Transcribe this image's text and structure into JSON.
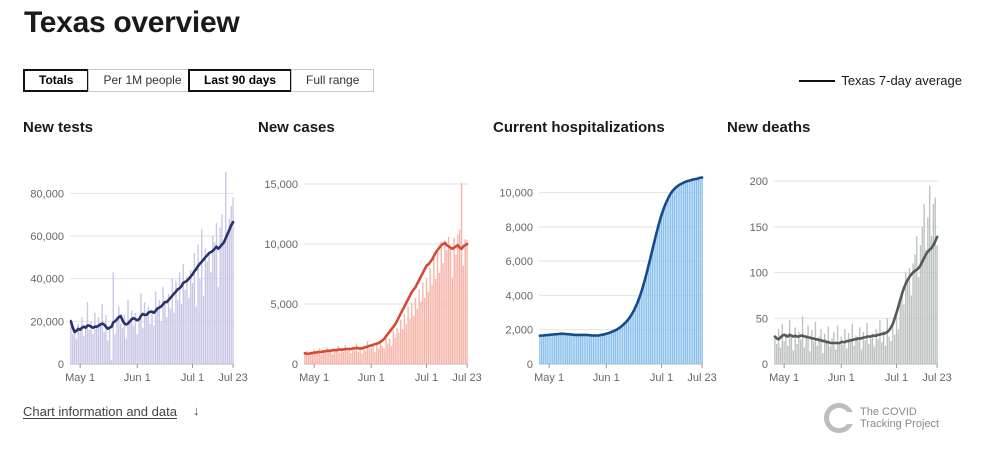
{
  "page": {
    "title": "Texas overview"
  },
  "controls": {
    "totals": "Totals",
    "per_1m": "Per 1M people",
    "last_90": "Last 90 days",
    "full_range": "Full range"
  },
  "legend": {
    "label": "Texas 7-day average"
  },
  "footer": {
    "link_label": "Chart information and data",
    "arrow": "↓"
  },
  "logo": {
    "line1": "The COVID",
    "line2": "Tracking Project"
  },
  "chart_data": [
    {
      "type": "bar",
      "title": "New tests",
      "bar_color": "#c9c7e6",
      "line_color": "#28336a",
      "ylim": [
        0,
        90000
      ],
      "yticks": [
        0,
        20000,
        40000,
        60000,
        80000
      ],
      "ytick_labels": [
        "0",
        "20,000",
        "40,000",
        "60,000",
        "80,000"
      ],
      "xticks": [
        {
          "index": 5,
          "label": "May 1"
        },
        {
          "index": 36,
          "label": "Jun 1"
        },
        {
          "index": 66,
          "label": "Jul 1"
        },
        {
          "index": 88,
          "label": "Jul 23"
        }
      ],
      "values": [
        21000,
        14000,
        17000,
        12000,
        19000,
        15000,
        22000,
        13000,
        18000,
        29000,
        16000,
        20000,
        14000,
        24000,
        17000,
        22000,
        18000,
        28000,
        15000,
        23000,
        11000,
        17000,
        2000,
        43000,
        14000,
        22000,
        27000,
        19000,
        17000,
        23000,
        12000,
        30000,
        20000,
        25000,
        18000,
        24000,
        14000,
        21000,
        33000,
        17000,
        29000,
        22000,
        27000,
        19000,
        24000,
        18000,
        34000,
        25000,
        30000,
        20000,
        36000,
        28000,
        22000,
        33000,
        26000,
        40000,
        24000,
        39000,
        30000,
        43000,
        28000,
        47000,
        35000,
        41000,
        31000,
        44000,
        38000,
        52000,
        27000,
        56000,
        40000,
        63000,
        32000,
        54000,
        48000,
        52000,
        43000,
        60000,
        57000,
        66000,
        36000,
        64000,
        70000,
        58000,
        90000,
        60000,
        68000,
        74000,
        78000
      ],
      "avg": [
        20000,
        17000,
        15000,
        15500,
        16500,
        16000,
        17000,
        17500,
        17000,
        18000,
        18000,
        17500,
        17000,
        17500,
        17500,
        18000,
        18500,
        19000,
        18500,
        17500,
        16500,
        17000,
        17500,
        19500,
        20000,
        21000,
        22000,
        22500,
        20500,
        19000,
        18500,
        19000,
        20000,
        21000,
        21500,
        21000,
        20500,
        21000,
        22500,
        23500,
        23000,
        23000,
        24000,
        24500,
        24500,
        24000,
        25000,
        26000,
        26500,
        27000,
        28000,
        29000,
        29000,
        30000,
        31000,
        32000,
        33000,
        34000,
        35000,
        35500,
        36500,
        38000,
        38500,
        39000,
        40000,
        41000,
        42000,
        43500,
        44500,
        46000,
        47000,
        48000,
        49000,
        50000,
        51000,
        52000,
        52500,
        53000,
        54000,
        55000,
        54000,
        55000,
        56000,
        57000,
        59000,
        61000,
        63000,
        65000,
        66500
      ]
    },
    {
      "type": "bar",
      "title": "New cases",
      "bar_color": "#f7b4a8",
      "line_color": "#d34b33",
      "ylim": [
        0,
        16000
      ],
      "yticks": [
        0,
        5000,
        10000,
        15000
      ],
      "ytick_labels": [
        "0",
        "5,000",
        "10,000",
        "15,000"
      ],
      "xticks": [
        {
          "index": 5,
          "label": "May 1"
        },
        {
          "index": 36,
          "label": "Jun 1"
        },
        {
          "index": 66,
          "label": "Jul 1"
        },
        {
          "index": 88,
          "label": "Jul 23"
        }
      ],
      "values": [
        900,
        1100,
        700,
        1000,
        800,
        1200,
        900,
        1000,
        1300,
        750,
        1100,
        900,
        1400,
        1000,
        1200,
        800,
        1300,
        1100,
        1500,
        950,
        1200,
        1000,
        1600,
        1100,
        1400,
        900,
        1300,
        1100,
        1700,
        1000,
        1200,
        850,
        1500,
        1100,
        1900,
        1200,
        1300,
        1700,
        1000,
        1800,
        1300,
        2000,
        1500,
        1300,
        2500,
        1700,
        2100,
        1500,
        2800,
        2200,
        3000,
        2600,
        3700,
        2900,
        4200,
        3300,
        4800,
        3800,
        5100,
        4000,
        5500,
        4600,
        6200,
        5200,
        6800,
        5500,
        7200,
        6000,
        8000,
        6600,
        8800,
        7100,
        9500,
        7600,
        10200,
        8400,
        10300,
        9500,
        10600,
        9800,
        7200,
        10500,
        9100,
        10800,
        11200,
        15100,
        8200,
        10400,
        10300
      ],
      "avg": [
        900,
        850,
        850,
        900,
        900,
        950,
        950,
        1000,
        1000,
        1000,
        1050,
        1050,
        1100,
        1100,
        1100,
        1150,
        1150,
        1150,
        1200,
        1200,
        1200,
        1200,
        1250,
        1250,
        1250,
        1250,
        1300,
        1300,
        1350,
        1300,
        1300,
        1300,
        1350,
        1400,
        1450,
        1500,
        1550,
        1600,
        1650,
        1700,
        1750,
        1850,
        1950,
        2100,
        2300,
        2500,
        2700,
        2900,
        3100,
        3300,
        3600,
        3900,
        4200,
        4500,
        4800,
        5100,
        5400,
        5700,
        6000,
        6200,
        6400,
        6700,
        7000,
        7300,
        7600,
        7900,
        8200,
        8300,
        8500,
        8700,
        9000,
        9300,
        9500,
        9700,
        9900,
        10000,
        10100,
        9900,
        9800,
        9700,
        9600,
        9700,
        9800,
        9900,
        9700,
        9600,
        9800,
        9900,
        10000
      ]
    },
    {
      "type": "bar",
      "title": "Current hospitalizations",
      "bar_color": "#8ac1ec",
      "line_color": "#164a8c",
      "ylim": [
        0,
        11200
      ],
      "yticks": [
        0,
        2000,
        4000,
        6000,
        8000,
        10000
      ],
      "ytick_labels": [
        "0",
        "2,000",
        "4,000",
        "6,000",
        "8,000",
        "10,000"
      ],
      "xticks": [
        {
          "index": 5,
          "label": "May 1"
        },
        {
          "index": 36,
          "label": "Jun 1"
        },
        {
          "index": 66,
          "label": "Jul 1"
        },
        {
          "index": 88,
          "label": "Jul 23"
        }
      ],
      "values": [
        1650,
        1700,
        1680,
        1720,
        1700,
        1750,
        1720,
        1760,
        1780,
        1740,
        1800,
        1760,
        1790,
        1770,
        1730,
        1720,
        1760,
        1700,
        1740,
        1690,
        1710,
        1680,
        1730,
        1700,
        1760,
        1720,
        1690,
        1700,
        1660,
        1640,
        1680,
        1650,
        1670,
        1690,
        1720,
        1740,
        1760,
        1790,
        1830,
        1870,
        1920,
        1960,
        2020,
        2100,
        2180,
        2260,
        2360,
        2480,
        2620,
        2780,
        2960,
        3150,
        3400,
        3650,
        3950,
        4300,
        4650,
        5050,
        5450,
        5900,
        6350,
        6800,
        7250,
        7700,
        8100,
        8500,
        8850,
        9150,
        9400,
        9650,
        9850,
        10000,
        10150,
        10250,
        10350,
        10420,
        10500,
        10560,
        10600,
        10650,
        10700,
        10720,
        10750,
        10780,
        10800,
        10820,
        10850,
        10900,
        10880
      ],
      "avg": [
        1650,
        1660,
        1670,
        1680,
        1690,
        1700,
        1710,
        1720,
        1730,
        1740,
        1750,
        1760,
        1760,
        1760,
        1750,
        1740,
        1730,
        1720,
        1710,
        1700,
        1700,
        1700,
        1700,
        1700,
        1700,
        1700,
        1690,
        1680,
        1670,
        1660,
        1660,
        1660,
        1670,
        1690,
        1710,
        1730,
        1760,
        1790,
        1830,
        1870,
        1920,
        1970,
        2030,
        2100,
        2180,
        2270,
        2370,
        2480,
        2610,
        2760,
        2930,
        3120,
        3350,
        3600,
        3880,
        4200,
        4550,
        4930,
        5330,
        5760,
        6200,
        6650,
        7100,
        7530,
        7950,
        8340,
        8700,
        9010,
        9290,
        9540,
        9760,
        9950,
        10100,
        10220,
        10320,
        10400,
        10470,
        10530,
        10580,
        10630,
        10670,
        10700,
        10730,
        10760,
        10780,
        10800,
        10830,
        10860,
        10880
      ]
    },
    {
      "type": "bar",
      "title": "New deaths",
      "bar_color": "#bcc2c0",
      "line_color": "#555a59",
      "ylim": [
        0,
        210
      ],
      "yticks": [
        0,
        50,
        100,
        150,
        200
      ],
      "ytick_labels": [
        "0",
        "50",
        "100",
        "150",
        "200"
      ],
      "xticks": [
        {
          "index": 5,
          "label": "May 1"
        },
        {
          "index": 36,
          "label": "Jun 1"
        },
        {
          "index": 66,
          "label": "Jul 1"
        },
        {
          "index": 88,
          "label": "Jul 23"
        }
      ],
      "values": [
        28,
        22,
        38,
        18,
        44,
        25,
        33,
        20,
        48,
        30,
        15,
        40,
        22,
        35,
        27,
        52,
        18,
        31,
        42,
        14,
        37,
        25,
        46,
        20,
        30,
        38,
        12,
        33,
        26,
        41,
        19,
        28,
        35,
        16,
        42,
        24,
        30,
        21,
        38,
        17,
        34,
        26,
        44,
        20,
        31,
        29,
        40,
        16,
        35,
        26,
        45,
        22,
        28,
        33,
        19,
        38,
        27,
        48,
        24,
        36,
        20,
        50,
        30,
        25,
        42,
        32,
        58,
        38,
        70,
        80,
        65,
        100,
        90,
        105,
        75,
        110,
        120,
        140,
        95,
        130,
        150,
        175,
        125,
        160,
        195,
        140,
        175,
        182,
        130
      ],
      "avg": [
        30,
        28,
        27,
        29,
        31,
        32,
        31,
        30,
        32,
        31,
        30,
        31,
        30,
        30,
        31,
        31,
        30,
        30,
        29,
        29,
        28,
        28,
        27,
        27,
        26,
        26,
        25,
        25,
        24,
        24,
        23,
        23,
        23,
        23,
        23,
        23,
        24,
        24,
        24,
        25,
        25,
        26,
        26,
        27,
        27,
        28,
        28,
        28,
        29,
        29,
        30,
        30,
        30,
        31,
        31,
        31,
        32,
        32,
        33,
        33,
        34,
        35,
        37,
        40,
        44,
        50,
        56,
        63,
        70,
        77,
        83,
        88,
        92,
        95,
        98,
        100,
        102,
        103,
        105,
        108,
        112,
        116,
        120,
        123,
        125,
        127,
        130,
        134,
        139
      ]
    }
  ]
}
